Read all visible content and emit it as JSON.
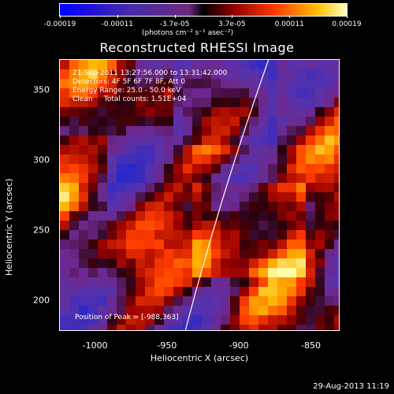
{
  "colorbar": {
    "tick_labels": [
      "-0.00019",
      "-0.00011",
      "-3.7e-05",
      "3.7e-05",
      "0.00011",
      "0.00019"
    ],
    "units": "(photons cm⁻² s⁻¹ asec⁻²)"
  },
  "title": "Reconstructed RHESSI Image",
  "info": {
    "line1": "21-Sep-2011 13:27:56.000 to 13:31:42.000",
    "line2": "Detectors: 4F 5F 6F 7F 8F, Att 0",
    "line3": "Energy Range: 25.0 - 50.0 keV",
    "line4": "Clean     Total counts: 1.51E+04"
  },
  "peak": "Position of Peak = [-988,363]",
  "axes": {
    "xlabel": "Heliocentric X (arcsec)",
    "ylabel": "Heliocentric Y (arcsec)",
    "xticks": [
      "-1000",
      "-950",
      "-900",
      "-850"
    ],
    "yticks": [
      "350",
      "300",
      "250",
      "200"
    ]
  },
  "timestamp": "29-Aug-2013 11:19",
  "chart_data": {
    "type": "heatmap",
    "title": "Reconstructed RHESSI Image",
    "xlabel": "Heliocentric X (arcsec)",
    "ylabel": "Heliocentric Y (arcsec)",
    "xlim": [
      -1025,
      -830
    ],
    "ylim": [
      178,
      372
    ],
    "xticks": [
      -1000,
      -950,
      -900,
      -850
    ],
    "yticks": [
      200,
      250,
      300,
      350
    ],
    "colorbar_range": [
      -0.00019,
      0.00019
    ],
    "peak_position": [
      -988,
      363
    ],
    "limb_line": [
      [
        -938,
        178
      ],
      [
        -880,
        372
      ]
    ]
  }
}
